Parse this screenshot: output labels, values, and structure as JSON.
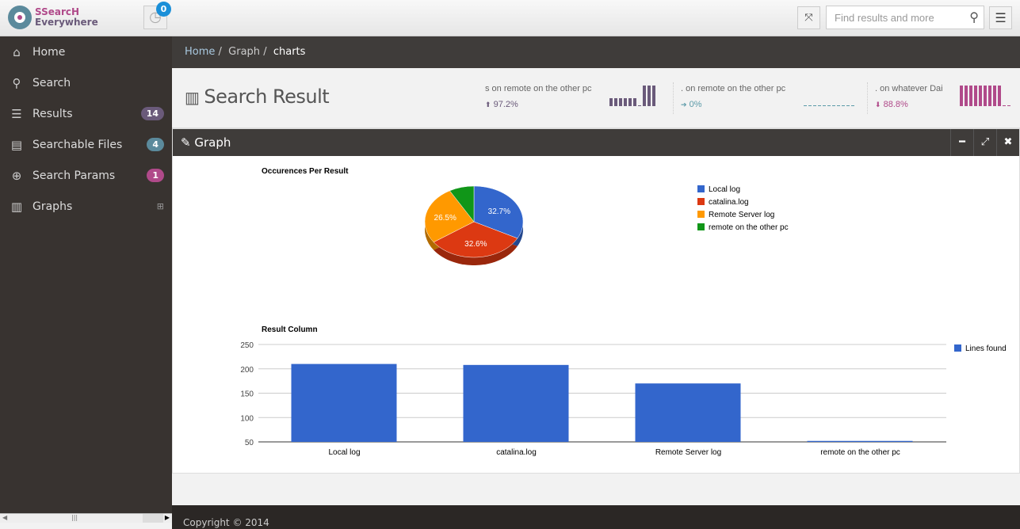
{
  "header": {
    "logo_line1": "SSearcH",
    "logo_line2": "Everywhere",
    "notif_count": "0",
    "search_placeholder": "Find results and more"
  },
  "sidebar": {
    "items": [
      {
        "label": "Home",
        "icon": "home-icon",
        "glyph": "⌂"
      },
      {
        "label": "Search",
        "icon": "search-icon",
        "glyph": "⚲"
      },
      {
        "label": "Results",
        "icon": "list-icon",
        "glyph": "☰",
        "badge": "14",
        "badge_color": "#6a5a7a"
      },
      {
        "label": "Searchable Files",
        "icon": "file-icon",
        "glyph": "▤",
        "badge": "4",
        "badge_color": "#5b8a9c"
      },
      {
        "label": "Search Params",
        "icon": "zoom-in-icon",
        "glyph": "⊕",
        "badge": "1",
        "badge_color": "#b04a8a"
      },
      {
        "label": "Graphs",
        "icon": "bar-chart-icon",
        "glyph": "▥",
        "extra": "⊞"
      }
    ]
  },
  "breadcrumb": [
    "Home",
    "Graph",
    "charts"
  ],
  "page_title": "Search Result",
  "stats": [
    {
      "label": "s on remote on the other pc",
      "value": "97.2%",
      "color": "#6a5a7a",
      "icon": "arrow-up-circle-icon",
      "glyph": "⬆"
    },
    {
      "label": ". on remote on the other pc",
      "value": "0%",
      "color": "#5b9aa8",
      "icon": "arrow-right-circle-icon",
      "glyph": "➔"
    },
    {
      "label": ". on whatever Dai",
      "value": "88.8%",
      "color": "#b04a8a",
      "icon": "arrow-down-circle-icon",
      "glyph": "⬇"
    }
  ],
  "panel": {
    "title": "Graph"
  },
  "footer": "Copyright © 2014",
  "chart_data": [
    {
      "type": "pie",
      "title": "Occurences Per Result",
      "categories": [
        "Local log",
        "catalina.log",
        "Remote Server log",
        "remote on the other pc"
      ],
      "values": [
        32.7,
        32.6,
        26.5,
        8.2
      ],
      "labels": [
        "32.7%",
        "32.6%",
        "26.5%",
        ""
      ],
      "colors": [
        "#3366cc",
        "#dc3912",
        "#ff9900",
        "#109618"
      ],
      "legend": "right"
    },
    {
      "type": "bar",
      "title": "Result Column",
      "categories": [
        "Local log",
        "catalina.log",
        "Remote Server log",
        "remote on the other pc"
      ],
      "series": [
        {
          "name": "Lines found",
          "values": [
            210,
            208,
            170,
            52
          ],
          "color": "#3366cc"
        }
      ],
      "ylim": [
        50,
        250
      ],
      "yticks": [
        "250",
        "200",
        "150",
        "100",
        "50"
      ],
      "grid": true,
      "legend": "top-right"
    }
  ]
}
